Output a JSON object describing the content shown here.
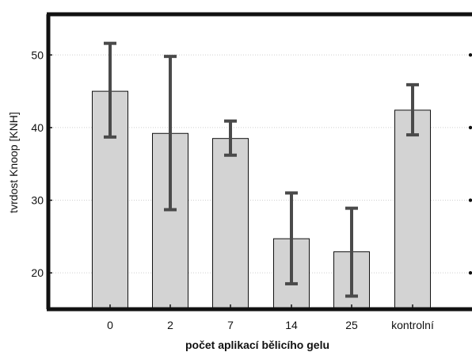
{
  "chart_data": {
    "type": "bar",
    "categories": [
      "0",
      "2",
      "7",
      "14",
      "25",
      "kontrolní"
    ],
    "values": [
      45.0,
      39.2,
      38.5,
      24.7,
      22.9,
      42.4
    ],
    "error_low": [
      38.7,
      28.7,
      36.2,
      18.5,
      16.8,
      39.0
    ],
    "error_high": [
      51.6,
      49.8,
      40.9,
      31.0,
      28.9,
      45.9
    ],
    "xlabel": "počet aplikací bělicího gelu",
    "ylabel": "tvrdost Knoop [KNH]",
    "ylim": [
      15,
      55.6
    ],
    "yticks": [
      20,
      30,
      40,
      50
    ],
    "grid": "horizontal dotted",
    "colors": {
      "bar_fill": "#d3d3d3",
      "bar_stroke": "#111111",
      "error_bar": "#4a4a4a",
      "frame": "#111111",
      "grid": "#cfcfcf"
    }
  }
}
